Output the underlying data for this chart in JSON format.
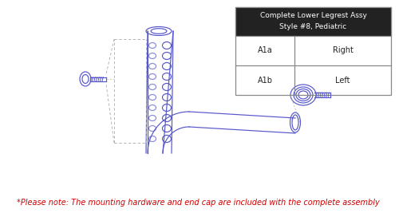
{
  "bg_color": "#ffffff",
  "draw_color": "#5555cc",
  "draw_color_light": "#8888dd",
  "dash_color": "#aaaaaa",
  "table_header_bg": "#222222",
  "table_header_fg": "#ffffff",
  "table_border": "#888888",
  "table_cell_fg": "#222222",
  "table_title_line1": "Complete Lower Legrest Assy",
  "table_title_line2": "Style #8, Pediatric",
  "table_rows": [
    [
      "A1a",
      "Right"
    ],
    [
      "A1b",
      "Left"
    ]
  ],
  "note_text": "*Please note: The mounting hardware and end cap are included with the complete assembly",
  "note_color": "#cc0000",
  "note_fontsize": 7.0,
  "table_fontsize": 7.0
}
